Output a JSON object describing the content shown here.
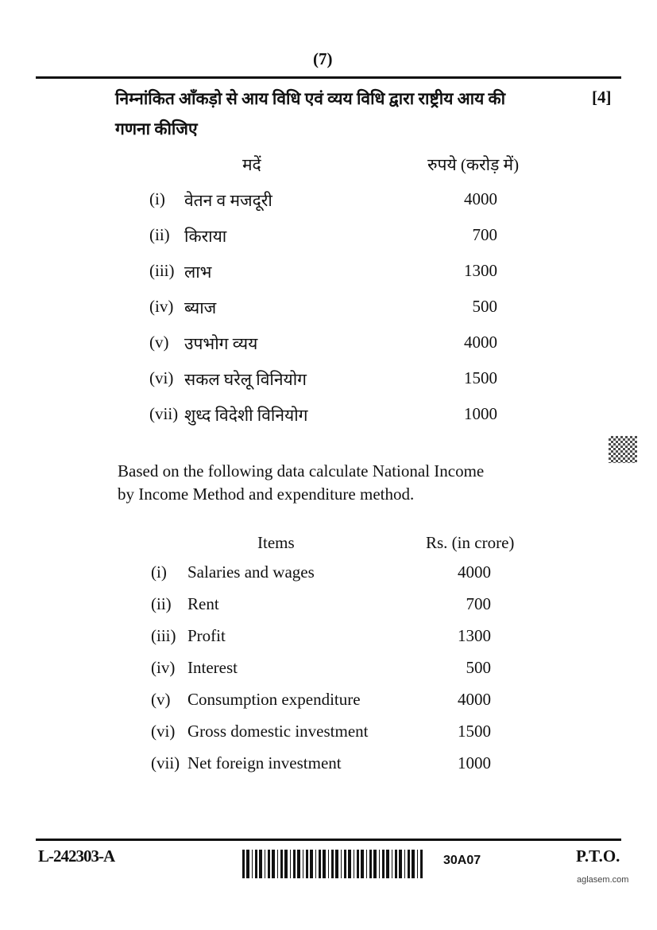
{
  "page_number": "(7)",
  "hindi": {
    "question": "निम्नांकित आँकड़ो से आय विधि एवं व्यय विधि द्वारा राष्ट्रीय आय की",
    "question_cont": "गणना कीजिए",
    "marks": "[4]",
    "header_items": "मदें",
    "header_amount": "रुपये (करोड़ में)",
    "rows": [
      {
        "num": "(i)",
        "item": "वेतन व मजदूरी",
        "value": "4000"
      },
      {
        "num": "(ii)",
        "item": "किराया",
        "value": "700"
      },
      {
        "num": "(iii)",
        "item": "लाभ",
        "value": "1300"
      },
      {
        "num": "(iv)",
        "item": "ब्याज",
        "value": "500"
      },
      {
        "num": "(v)",
        "item": "उपभोग व्यय",
        "value": "4000"
      },
      {
        "num": "(vi)",
        "item": "सकल घरेलू विनियोग",
        "value": "1500"
      },
      {
        "num": "(vii)",
        "item": "शुध्द विदेशी विनियोग",
        "value": "1000"
      }
    ]
  },
  "english": {
    "question": "Based on the following data calculate National Income",
    "question_cont": "by Income Method and expenditure method.",
    "header_items": "Items",
    "header_amount": "Rs. (in crore)",
    "rows": [
      {
        "num": "(i)",
        "item": "Salaries and wages",
        "value": "4000"
      },
      {
        "num": "(ii)",
        "item": "Rent",
        "value": "700"
      },
      {
        "num": "(iii)",
        "item": "Profit",
        "value": "1300"
      },
      {
        "num": "(iv)",
        "item": "Interest",
        "value": "500"
      },
      {
        "num": "(v)",
        "item": "Consumption expenditure",
        "value": "4000"
      },
      {
        "num": "(vi)",
        "item": "Gross domestic investment",
        "value": "1500"
      },
      {
        "num": "(vii)",
        "item": "Net foreign investment",
        "value": "1000"
      }
    ]
  },
  "footer": {
    "paper_code": "L-242303-A",
    "barcode_code": "30A07",
    "pto": "P.T.O.",
    "watermark": "aglasem.com"
  }
}
